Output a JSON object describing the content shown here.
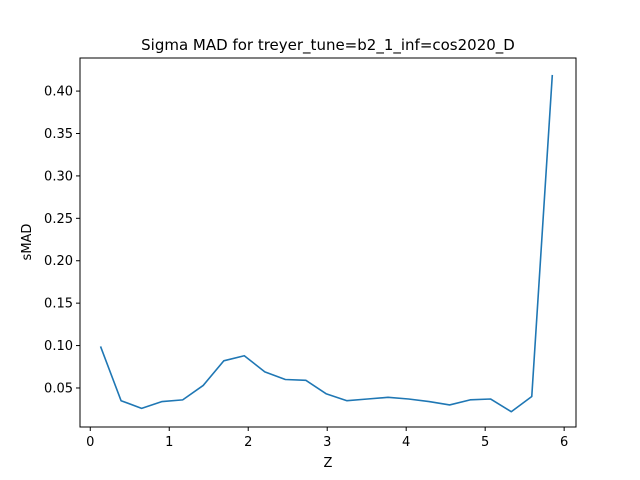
{
  "chart_data": {
    "type": "line",
    "title": "Sigma MAD for treyer_tune=b2_1_inf=cos2020_D",
    "xlabel": "Z",
    "ylabel": "sMAD",
    "xlim": [
      -0.13,
      6.15
    ],
    "ylim": [
      0.004,
      0.439
    ],
    "xticks": [
      0,
      1,
      2,
      3,
      4,
      5,
      6
    ],
    "xtick_labels": [
      "0",
      "1",
      "2",
      "3",
      "4",
      "5",
      "6"
    ],
    "yticks": [
      0.05,
      0.1,
      0.15,
      0.2,
      0.25,
      0.3,
      0.35,
      0.4
    ],
    "ytick_labels": [
      "0.05",
      "0.10",
      "0.15",
      "0.20",
      "0.25",
      "0.30",
      "0.35",
      "0.40"
    ],
    "grid": false,
    "legend": "none",
    "series": [
      {
        "color": "#1f77b4",
        "x": [
          0.13,
          0.39,
          0.65,
          0.91,
          1.17,
          1.43,
          1.69,
          1.95,
          2.21,
          2.47,
          2.73,
          2.99,
          3.25,
          3.51,
          3.77,
          4.03,
          4.29,
          4.55,
          4.81,
          5.07,
          5.33,
          5.59,
          5.85
        ],
        "y": [
          0.099,
          0.035,
          0.026,
          0.034,
          0.036,
          0.053,
          0.082,
          0.088,
          0.069,
          0.06,
          0.059,
          0.043,
          0.035,
          0.037,
          0.039,
          0.037,
          0.034,
          0.03,
          0.036,
          0.037,
          0.022,
          0.04,
          0.419
        ]
      }
    ]
  }
}
